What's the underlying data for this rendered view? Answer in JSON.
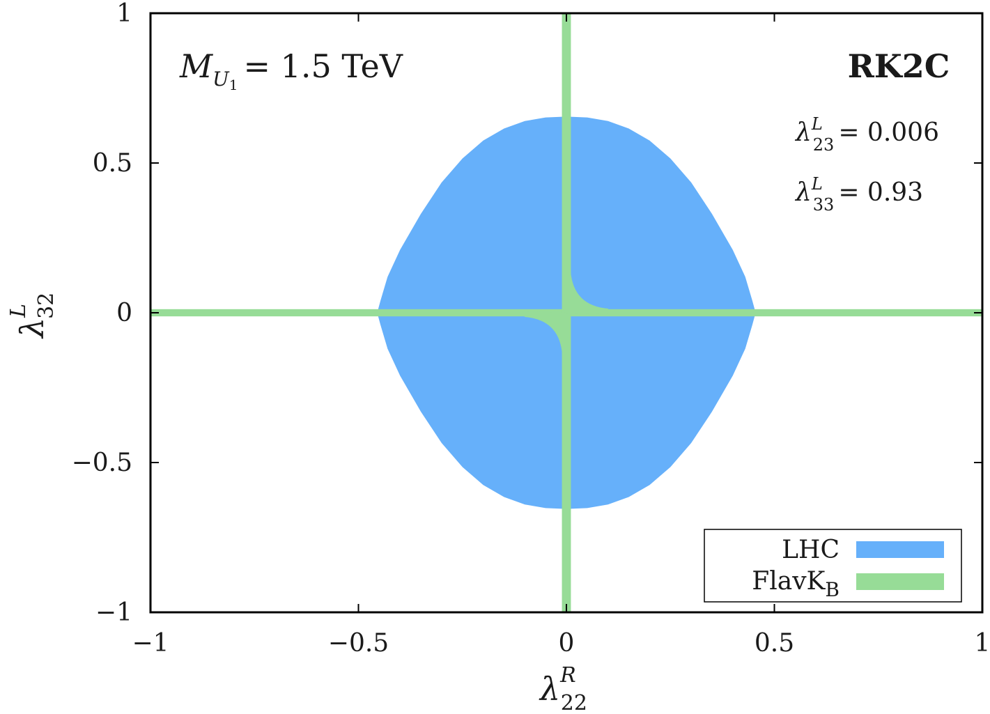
{
  "chart_data": {
    "type": "area",
    "xlabel": "λ",
    "xlabel_sup": "R",
    "xlabel_sub": "22",
    "ylabel": "λ",
    "ylabel_sup": "L",
    "ylabel_sub": "32",
    "xlim": [
      -1,
      1
    ],
    "ylim": [
      -1,
      1
    ],
    "x_ticks": [
      -1,
      -0.5,
      0,
      0.5,
      1
    ],
    "x_tick_labels": [
      "−1",
      "−0.5",
      "0",
      "0.5",
      "1"
    ],
    "y_ticks": [
      -1,
      -0.5,
      0,
      0.5,
      1
    ],
    "y_tick_labels": [
      "−1",
      "−0.5",
      "0",
      "0.5",
      "1"
    ],
    "grid": false,
    "annotations": {
      "mass_symbol": "M",
      "mass_sub": "U",
      "mass_sub_sub": "1",
      "mass_value": "= 1.5 TeV",
      "scenario": "RK2C",
      "coupling1_symbol": "λ",
      "coupling1_sup": "L",
      "coupling1_sub": "23",
      "coupling1_value": "= 0.006",
      "coupling2_symbol": "λ",
      "coupling2_sup": "L",
      "coupling2_sub": "33",
      "coupling2_value": "= 0.93"
    },
    "legend_position": "bottom-right",
    "series": [
      {
        "name": "LHC",
        "color": "#66b0fa",
        "kind": "region",
        "description_points": {
          "x_extent": [
            -0.455,
            0.455
          ],
          "y_extent": [
            -0.655,
            0.655
          ],
          "boundary": [
            [
              0.0,
              0.655
            ],
            [
              0.05,
              0.652
            ],
            [
              0.1,
              0.64
            ],
            [
              0.15,
              0.615
            ],
            [
              0.2,
              0.575
            ],
            [
              0.25,
              0.515
            ],
            [
              0.3,
              0.435
            ],
            [
              0.35,
              0.33
            ],
            [
              0.4,
              0.21
            ],
            [
              0.43,
              0.12
            ],
            [
              0.447,
              0.04
            ],
            [
              0.455,
              0.0
            ],
            [
              0.447,
              -0.04
            ],
            [
              0.43,
              -0.12
            ],
            [
              0.4,
              -0.21
            ],
            [
              0.35,
              -0.33
            ],
            [
              0.3,
              -0.435
            ],
            [
              0.25,
              -0.515
            ],
            [
              0.2,
              -0.575
            ],
            [
              0.15,
              -0.615
            ],
            [
              0.1,
              -0.64
            ],
            [
              0.05,
              -0.652
            ],
            [
              0.0,
              -0.655
            ],
            [
              -0.05,
              -0.652
            ],
            [
              -0.1,
              -0.64
            ],
            [
              -0.15,
              -0.615
            ],
            [
              -0.2,
              -0.575
            ],
            [
              -0.25,
              -0.515
            ],
            [
              -0.3,
              -0.435
            ],
            [
              -0.35,
              -0.33
            ],
            [
              -0.4,
              -0.21
            ],
            [
              -0.43,
              -0.12
            ],
            [
              -0.447,
              -0.04
            ],
            [
              -0.455,
              0.0
            ],
            [
              -0.447,
              0.04
            ],
            [
              -0.43,
              0.12
            ],
            [
              -0.4,
              0.21
            ],
            [
              -0.35,
              0.33
            ],
            [
              -0.3,
              0.435
            ],
            [
              -0.25,
              0.515
            ],
            [
              -0.2,
              0.575
            ],
            [
              -0.15,
              0.615
            ],
            [
              -0.1,
              0.64
            ],
            [
              -0.05,
              0.652
            ]
          ]
        }
      },
      {
        "name": "FlavK",
        "name_sub": "B",
        "color": "#97dc97",
        "kind": "band",
        "description_points": {
          "horizontal_band_y": 0.0,
          "vertical_band_x": 0.0,
          "band_halfwidth": 0.012
        }
      }
    ]
  }
}
